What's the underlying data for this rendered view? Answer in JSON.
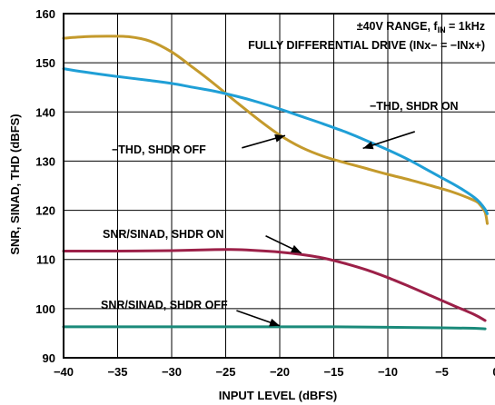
{
  "chart_data": {
    "type": "line",
    "xlabel": "INPUT LEVEL (dBFS)",
    "ylabel": "SNR, SINAD, THD (dBFS)",
    "xlim": [
      -40,
      0
    ],
    "ylim": [
      90,
      160
    ],
    "x_ticks": [
      -40,
      -35,
      -30,
      -25,
      -20,
      -15,
      -10,
      -5,
      0
    ],
    "y_ticks": [
      90,
      100,
      110,
      120,
      130,
      140,
      150,
      160
    ],
    "x_tick_labels": [
      "−40",
      "−35",
      "−30",
      "−25",
      "−20",
      "−15",
      "−10",
      "−5",
      "0"
    ],
    "y_tick_labels": [
      "90",
      "100",
      "110",
      "120",
      "130",
      "140",
      "150",
      "160"
    ],
    "grid": true,
    "conditions": {
      "line1_prefix": "±40V RANGE, f",
      "line1_sub": "IN",
      "line1_suffix": " = 1kHz",
      "line2": "FULLY DIFFERENTIAL DRIVE (INx− = −INx+)"
    },
    "series": [
      {
        "name": "−THD, SHDR OFF",
        "color": "#c49a2c",
        "x": [
          -40,
          -38,
          -36,
          -34,
          -32,
          -30,
          -28,
          -26,
          -24,
          -22,
          -20,
          -18,
          -16,
          -14,
          -12,
          -10,
          -8,
          -6,
          -4,
          -2,
          -1.5,
          -1,
          -0.8
        ],
        "y": [
          155,
          155.3,
          155.4,
          155.3,
          154.4,
          152.2,
          149,
          145.6,
          142,
          138.5,
          135.3,
          132.8,
          131,
          129.7,
          128.5,
          127.3,
          126.2,
          125,
          123.7,
          122,
          121.2,
          119.6,
          117.3
        ]
      },
      {
        "name": "−THD, SHDR ON",
        "color": "#1f9fd6",
        "x": [
          -40,
          -38,
          -35,
          -32,
          -30,
          -28,
          -26,
          -24,
          -22,
          -20,
          -18,
          -16,
          -14,
          -12,
          -10,
          -8,
          -6,
          -4,
          -3,
          -2,
          -1.5,
          -1,
          -0.8
        ],
        "y": [
          148.8,
          148.1,
          147.2,
          146.4,
          145.8,
          145,
          144.2,
          143.2,
          142,
          140.6,
          139.1,
          137.6,
          136,
          134.2,
          132.3,
          130.2,
          127.8,
          125.4,
          124.1,
          122.6,
          121.6,
          120.2,
          119.3
        ]
      },
      {
        "name": "SNR/SINAD, SHDR ON",
        "color": "#9c2048",
        "x": [
          -40,
          -35,
          -30,
          -26,
          -24,
          -22,
          -20,
          -18,
          -16,
          -14,
          -12,
          -10,
          -8,
          -6,
          -4,
          -2,
          -1
        ],
        "y": [
          111.7,
          111.7,
          111.8,
          112,
          112,
          111.8,
          111.5,
          111,
          110.3,
          109.2,
          107.9,
          106.3,
          104.5,
          102.6,
          100.7,
          98.8,
          97.6
        ]
      },
      {
        "name": "SNR/SINAD, SHDR OFF",
        "color": "#1a8a7a",
        "x": [
          -40,
          -35,
          -30,
          -25,
          -20,
          -15,
          -10,
          -5,
          -2,
          -1
        ],
        "y": [
          96.3,
          96.3,
          96.3,
          96.3,
          96.3,
          96.3,
          96.2,
          96.1,
          96,
          95.9
        ]
      }
    ],
    "annotations": [
      {
        "text": "−THD, SHDR OFF",
        "arrow_from": [
          -23.5,
          132.7
        ],
        "arrow_to": [
          -19.5,
          135.2
        ]
      },
      {
        "text": "−THD, SHDR ON",
        "arrow_from": [
          -7.5,
          136
        ],
        "arrow_to": [
          -12.3,
          132.6
        ]
      },
      {
        "text": "SNR/SINAD, SHDR ON",
        "arrow_from": [
          -21.3,
          114.8
        ],
        "arrow_to": [
          -18,
          111.3
        ]
      },
      {
        "text": "SNR/SINAD, SHDR OFF",
        "arrow_from": [
          -24,
          99.6
        ],
        "arrow_to": [
          -20,
          96.5
        ]
      }
    ]
  }
}
